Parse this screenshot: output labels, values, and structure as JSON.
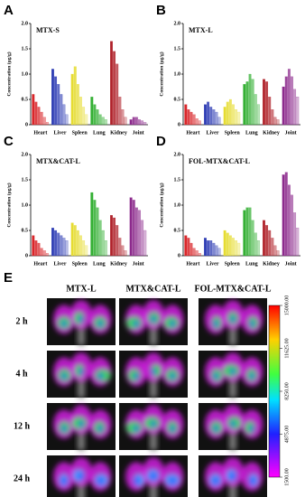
{
  "chart_data": [
    {
      "type": "bar",
      "panel_label": "A",
      "title": "MTX-S",
      "y_label": "Concentration (μg/g)",
      "categories": [
        "Heart",
        "Liver",
        "Spleen",
        "Lung",
        "Kidney",
        "Joint"
      ],
      "colors": [
        "#d9262a",
        "#2d3cb4",
        "#e6dc32",
        "#34b034",
        "#b0222a",
        "#8c2a8c"
      ],
      "values": [
        [
          0.6,
          0.45,
          0.35,
          0.25,
          0.15,
          0.05
        ],
        [
          1.1,
          0.95,
          0.8,
          0.6,
          0.4,
          0.2
        ],
        [
          1.0,
          1.15,
          0.8,
          0.55,
          0.35,
          0.2
        ],
        [
          0.55,
          0.4,
          0.3,
          0.2,
          0.15,
          0.1
        ],
        [
          1.65,
          1.45,
          1.2,
          0.55,
          0.3,
          0.15
        ],
        [
          0.1,
          0.15,
          0.15,
          0.1,
          0.08,
          0.05
        ]
      ],
      "ylim": [
        0,
        2
      ],
      "yticks": [
        0,
        0.5,
        {
          "value": 1,
          "label": "1.0"
        },
        1.5,
        {
          "value": 2,
          "label": "2.0"
        }
      ]
    },
    {
      "type": "bar",
      "panel_label": "B",
      "title": "MTX-L",
      "y_label": "Concentration (μg/g)",
      "categories": [
        "Heart",
        "Liver",
        "Spleen",
        "Lung",
        "Kidney",
        "Joint"
      ],
      "colors": [
        "#d9262a",
        "#2d3cb4",
        "#e6dc32",
        "#34b034",
        "#b0222a",
        "#8c2a8c"
      ],
      "values": [
        [
          0.4,
          0.3,
          0.25,
          0.2,
          0.12,
          0.08
        ],
        [
          0.4,
          0.45,
          0.35,
          0.3,
          0.25,
          0.15
        ],
        [
          0.35,
          0.45,
          0.5,
          0.4,
          0.3,
          0.25
        ],
        [
          0.8,
          0.85,
          1.0,
          0.9,
          0.6,
          0.4
        ],
        [
          0.9,
          0.85,
          0.55,
          0.3,
          0.15,
          0.1
        ],
        [
          0.75,
          0.95,
          1.1,
          0.95,
          0.7,
          0.55
        ]
      ],
      "ylim": [
        0,
        2
      ],
      "yticks": [
        0,
        0.5,
        {
          "value": 1,
          "label": "1.0"
        },
        1.5,
        {
          "value": 2,
          "label": "2.0"
        }
      ]
    },
    {
      "type": "bar",
      "panel_label": "C",
      "title": "MTX&CAT-L",
      "y_label": "Concentration (μg/g)",
      "categories": [
        "Heart",
        "Liver",
        "Spleen",
        "Lung",
        "Kidney",
        "Joint"
      ],
      "colors": [
        "#d9262a",
        "#2d3cb4",
        "#e6dc32",
        "#34b034",
        "#b0222a",
        "#8c2a8c"
      ],
      "values": [
        [
          0.4,
          0.3,
          0.25,
          0.15,
          0.1,
          0.05
        ],
        [
          0.55,
          0.5,
          0.45,
          0.4,
          0.35,
          0.3
        ],
        [
          0.65,
          0.6,
          0.5,
          0.4,
          0.3,
          0.2
        ],
        [
          1.25,
          1.1,
          0.95,
          0.7,
          0.5,
          0.3
        ],
        [
          0.8,
          0.75,
          0.6,
          0.35,
          0.2,
          0.1
        ],
        [
          1.15,
          1.1,
          0.95,
          0.9,
          0.7,
          0.5
        ]
      ],
      "ylim": [
        0,
        2
      ],
      "yticks": [
        0,
        0.5,
        {
          "value": 1,
          "label": "1.0"
        },
        1.5,
        {
          "value": 2,
          "label": "2.0"
        }
      ]
    },
    {
      "type": "bar",
      "panel_label": "D",
      "title": "FOL-MTX&CAT-L",
      "y_label": "Concentration (μg/g)",
      "categories": [
        "Heart",
        "Liver",
        "Spleen",
        "Lung",
        "Kidney",
        "Joint"
      ],
      "colors": [
        "#d9262a",
        "#2d3cb4",
        "#e6dc32",
        "#34b034",
        "#b0222a",
        "#8c2a8c"
      ],
      "values": [
        [
          0.4,
          0.35,
          0.25,
          0.15,
          0.1,
          0.05
        ],
        [
          0.35,
          0.3,
          0.3,
          0.25,
          0.2,
          0.15
        ],
        [
          0.5,
          0.45,
          0.4,
          0.35,
          0.3,
          0.25
        ],
        [
          0.9,
          0.95,
          0.95,
          0.7,
          0.45,
          0.3
        ],
        [
          0.7,
          0.6,
          0.5,
          0.35,
          0.2,
          0.1
        ],
        [
          1.6,
          1.65,
          1.4,
          1.2,
          0.85,
          0.55
        ]
      ],
      "ylim": [
        0,
        2
      ],
      "yticks": [
        0,
        0.5,
        {
          "value": 1,
          "label": "1.0"
        },
        1.5,
        {
          "value": 2,
          "label": "2.0"
        }
      ]
    }
  ],
  "imaging": {
    "panel_label": "E",
    "columns": [
      "MTX-L",
      "MTX&CAT-L",
      "FOL-MTX&CAT-L"
    ],
    "rows": [
      "2 h",
      "4 h",
      "12 h",
      "24 h"
    ],
    "scale_ticks": [
      "15000.00",
      "11625.00",
      "8250.00",
      "4875.00",
      "1500.00"
    ]
  }
}
